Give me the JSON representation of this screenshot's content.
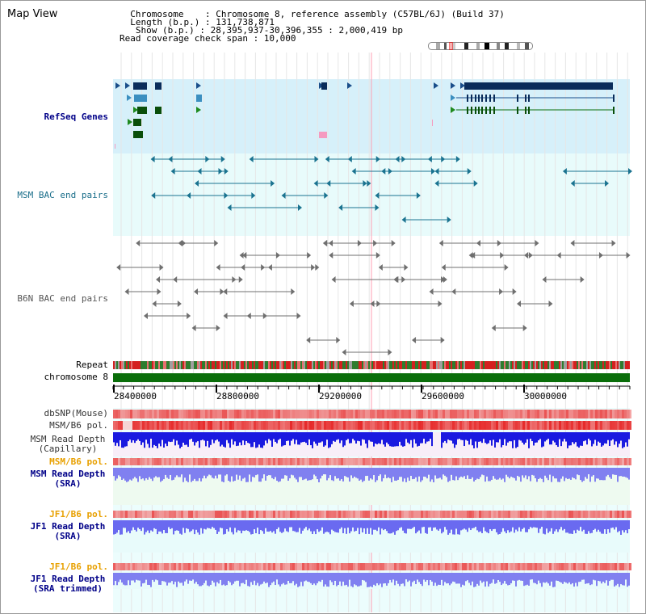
{
  "header": {
    "title": "Map View",
    "info_lines": [
      "  Chromosome    : Chromosome 8, reference assembly (C57BL/6J) (Build 37)",
      "  Length (b.p.) : 131,738,871",
      "   Show (b.p.) : 28,395,937-30,396,355 : 2,000,419 bp",
      "Read coverage check span : 10,000"
    ]
  },
  "tracks": {
    "refseq": "RefSeq Genes",
    "msm_bac": "MSM BAC end pairs",
    "b6n_bac": "B6N BAC end pairs",
    "repeat": "Repeat",
    "chromosome": "chromosome 8",
    "dbsnp": "dbSNP(Mouse)",
    "msm_pol": "MSM/B6 pol.",
    "msm_depth_cap": "MSM Read Depth\n(Capillary)",
    "msm_pol2": "MSM/B6 pol.",
    "msm_depth_sra": "MSM Read Depth\n(SRA)",
    "jf1_pol": "JF1/B6 pol.",
    "jf1_depth_sra": "JF1 Read Depth\n(SRA)",
    "jf1_pol2": "JF1/B6 pol.",
    "jf1_depth_trim": "JF1 Read Depth\n(SRA trimmed)"
  },
  "axis": {
    "ticks": [
      "28400000",
      "28800000",
      "29200000",
      "29600000",
      "30000000"
    ]
  },
  "colors": {
    "refseq_bg": "#d6f0fa",
    "bac_bg": "#e8fbfb",
    "msm_label": "#1a6e8a",
    "pol_label": "#e8a000",
    "depth_label": "#000088",
    "chromosome": "#0a6e0a"
  }
}
